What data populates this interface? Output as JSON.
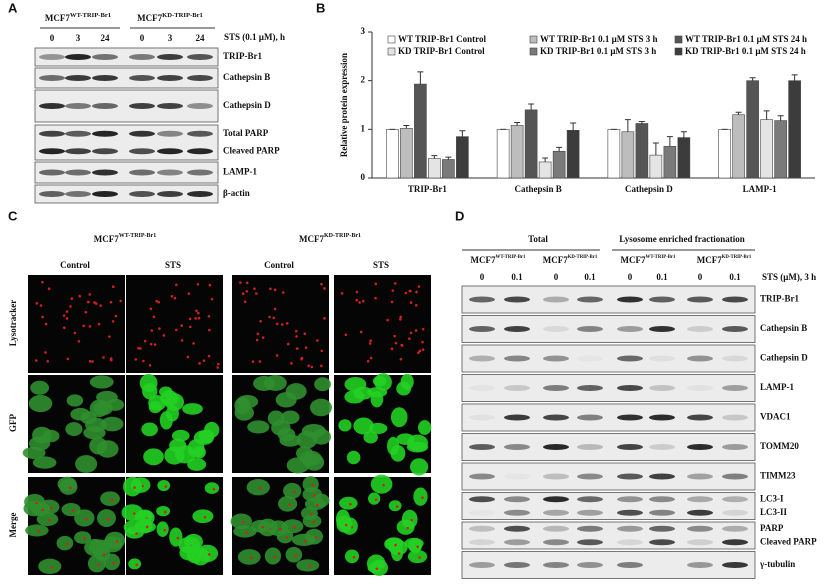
{
  "panel_a": {
    "label": "A",
    "groups": [
      {
        "base": "MCF7",
        "sup": "WT-TRIP-Br1"
      },
      {
        "base": "MCF7",
        "sup": "KD-TRIP-Br1"
      }
    ],
    "treatment": "STS (0.1 µM),  h",
    "timepoints": [
      "0",
      "3",
      "24",
      "0",
      "3",
      "24"
    ],
    "blots": [
      [
        "TRIP-Br1"
      ],
      [
        "Cathepsin B"
      ],
      [
        "Cathepsin D"
      ],
      [
        "Total PARP",
        "Cleaved PARP"
      ],
      [
        "LAMP-1"
      ],
      [
        "β-actin"
      ]
    ]
  },
  "panel_b": {
    "label": "B"
  },
  "chart_data": {
    "type": "bar",
    "y_label": "Relative protein expression",
    "categories": [
      "TRIP-Br1",
      "Cathepsin B",
      "Cathepsin D",
      "LAMP-1"
    ],
    "series": [
      {
        "name": "WT TRIP-Br1 Control",
        "color": "#ffffff",
        "values": [
          1,
          1,
          1,
          1
        ],
        "errors": [
          0,
          0,
          0,
          0
        ]
      },
      {
        "name": "WT TRIP-Br1 0.1 μM STS 3 h",
        "color": "#bdbdbd",
        "values": [
          1.02,
          1.08,
          0.95,
          1.3
        ],
        "errors": [
          0.06,
          0.06,
          0.25,
          0.05
        ]
      },
      {
        "name": "WT TRIP-Br1 0.1 μM STS 24 h",
        "color": "#555555",
        "values": [
          1.93,
          1.4,
          1.12,
          2.0
        ],
        "errors": [
          0.25,
          0.12,
          0.04,
          0.06
        ]
      },
      {
        "name": "KD TRIP-Br1 Control",
        "color": "#e4e4e4",
        "values": [
          0.4,
          0.33,
          0.47,
          1.2
        ],
        "errors": [
          0.06,
          0.08,
          0.25,
          0.18
        ]
      },
      {
        "name": "KD TRIP-Br1 0.1 μM STS 3 h",
        "color": "#7a7a7a",
        "values": [
          0.38,
          0.55,
          0.65,
          1.18
        ],
        "errors": [
          0.05,
          0.08,
          0.2,
          0.1
        ]
      },
      {
        "name": "KD TRIP-Br1 0.1 μM STS 24 h",
        "color": "#3c3c3c",
        "values": [
          0.85,
          0.98,
          0.83,
          2.0
        ],
        "errors": [
          0.12,
          0.15,
          0.12,
          0.12
        ]
      }
    ],
    "ylim": [
      0,
      3
    ],
    "yticks": [
      0,
      1,
      2,
      3
    ]
  },
  "panel_c": {
    "label": "C",
    "groups": [
      {
        "base": "MCF7",
        "sup": "WT-TRIP-Br1"
      },
      {
        "base": "MCF7",
        "sup": "KD-TRIP-Br1"
      }
    ],
    "conditions": [
      "Control",
      "STS",
      "Control",
      "STS"
    ],
    "rows": [
      "Lysotracker",
      "GFP",
      "Merge"
    ]
  },
  "panel_d": {
    "label": "D",
    "sections": [
      "Total",
      "Lysosome enriched fractionation"
    ],
    "groups": [
      {
        "base": "MCF7",
        "sup": "WT-TRIP-Br1"
      },
      {
        "base": "MCF7",
        "sup": "KD-TRIP-Br1"
      },
      {
        "base": "MCF7",
        "sup": "WT-TRIP-Br1"
      },
      {
        "base": "MCF7",
        "sup": "KD-TRIP-Br1"
      }
    ],
    "doses": [
      "0",
      "0.1",
      "0",
      "0.1",
      "0",
      "0.1",
      "0",
      "0.1"
    ],
    "treatment": "STS (μM),  3 h",
    "blots": [
      [
        "TRIP-Br1"
      ],
      [
        "Cathepsin B"
      ],
      [
        "Cathepsin D"
      ],
      [
        "LAMP-1"
      ],
      [
        "VDAC1"
      ],
      [
        "TOMM20"
      ],
      [
        "TIMM23"
      ],
      [
        "LC3-I",
        "LC3-II"
      ],
      [
        "PARP",
        "Cleaved  PARP"
      ],
      [
        "γ-tubulin"
      ]
    ]
  }
}
